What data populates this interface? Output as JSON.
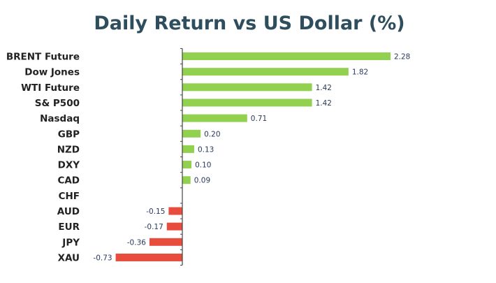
{
  "chart_data": {
    "type": "bar",
    "orientation": "horizontal",
    "title": "Daily Return vs US Dollar (%)",
    "xlabel": "",
    "ylabel": "",
    "categories": [
      "BRENT Future",
      "Dow Jones",
      "WTI Future",
      "S& P500",
      "Nasdaq",
      "GBP",
      "NZD",
      "DXY",
      "CAD",
      "CHF",
      "AUD",
      "EUR",
      "JPY",
      "XAU"
    ],
    "values": [
      2.28,
      1.82,
      1.42,
      1.42,
      0.71,
      0.2,
      0.13,
      0.1,
      0.09,
      0.0,
      -0.15,
      -0.17,
      -0.36,
      -0.73
    ],
    "value_labels": [
      "2.28",
      "1.82",
      "1.42",
      "1.42",
      "0.71",
      "0.20",
      "0.13",
      "0.10",
      "0.09",
      "",
      "-0.15",
      "-0.17",
      "-0.36",
      "-0.73"
    ],
    "xlim": [
      -0.75,
      2.3
    ],
    "grid": false,
    "legend": "none",
    "colors": {
      "positive": "#92d050",
      "negative": "#e74c3c",
      "title": "#2e4e5e",
      "category_text": "#222222",
      "value_text": "#2a3a5a",
      "axis": "#444444"
    }
  }
}
